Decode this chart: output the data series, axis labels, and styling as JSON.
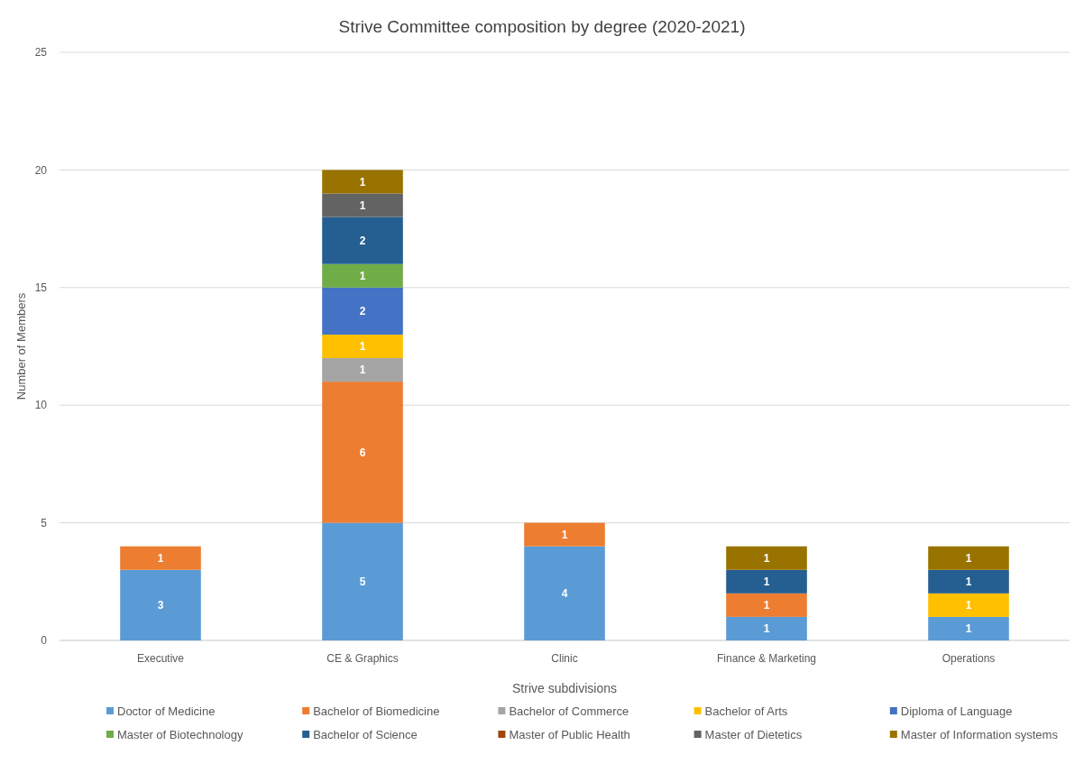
{
  "chart_data": {
    "type": "bar",
    "title": "Strive Committee composition by degree (2020-2021)",
    "xlabel": "Strive subdivisions",
    "ylabel": "Number of Members",
    "categories": [
      "Executive",
      "CE & Graphics",
      "Clinic",
      "Finance & Marketing",
      "Operations"
    ],
    "stacked": true,
    "data_labels": true,
    "grid": "y",
    "legend": "bottom",
    "ylim": [
      0,
      25
    ],
    "yticks": [
      0,
      5,
      10,
      15,
      20,
      25
    ],
    "series": [
      {
        "name": "Doctor of Medicine",
        "color": "#5b9bd5",
        "values": [
          3,
          5,
          4,
          1,
          1
        ]
      },
      {
        "name": "Bachelor of Biomedicine",
        "color": "#ed7d31",
        "values": [
          1,
          6,
          1,
          1,
          null
        ]
      },
      {
        "name": "Bachelor of Commerce",
        "color": "#a5a5a5",
        "values": [
          null,
          1,
          null,
          null,
          null
        ]
      },
      {
        "name": "Bachelor of Arts",
        "color": "#ffc000",
        "values": [
          null,
          1,
          null,
          null,
          1
        ]
      },
      {
        "name": "Diploma of Language",
        "color": "#4472c4",
        "values": [
          null,
          2,
          null,
          null,
          null
        ]
      },
      {
        "name": "Master of Biotechnology",
        "color": "#70ad47",
        "values": [
          null,
          1,
          null,
          null,
          null
        ]
      },
      {
        "name": "Bachelor of Science",
        "color": "#255e91",
        "values": [
          null,
          2,
          null,
          1,
          1
        ]
      },
      {
        "name": "Master of Public Health",
        "color": "#9e480e",
        "values": [
          null,
          null,
          null,
          null,
          null
        ]
      },
      {
        "name": "Master of Dietetics",
        "color": "#636363",
        "values": [
          null,
          1,
          null,
          null,
          null
        ]
      },
      {
        "name": "Master of Information systems",
        "color": "#997300",
        "values": [
          null,
          1,
          null,
          1,
          1
        ]
      }
    ]
  }
}
